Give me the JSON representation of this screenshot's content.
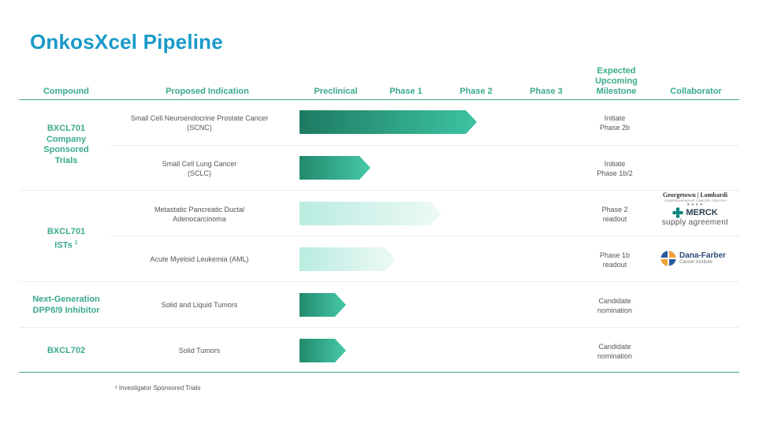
{
  "title": "OnkosXcel Pipeline",
  "headers": {
    "compound": "Compound",
    "indication": "Proposed Indication",
    "preclinical": "Preclinical",
    "phase1": "Phase 1",
    "phase2": "Phase 2",
    "phase3": "Phase 3",
    "milestone_l1": "Expected",
    "milestone_l2": "Upcoming",
    "milestone_l3": "Milestone",
    "collaborator": "Collaborator"
  },
  "groups": [
    {
      "lines": [
        "BXCL701",
        "Company",
        "Sponsored",
        "Trials"
      ]
    },
    {
      "lines": [
        "BXCL701",
        "ISTs"
      ],
      "sup": "1"
    },
    {
      "lines": [
        "Next-Generation",
        "DPP8/9 Inhibitor"
      ]
    },
    {
      "lines": [
        "BXCL702"
      ]
    }
  ],
  "rows": [
    {
      "indication": [
        "Small Cell Neuroendocrine Prostate Cancer",
        "(SCNC)"
      ],
      "milestone": [
        "Initiate",
        "Phase 2b"
      ],
      "progress_stage": 2.5,
      "style": "dark"
    },
    {
      "indication": [
        "Small Cell Lung Cancer",
        "(SCLC)"
      ],
      "milestone": [
        "Initiate",
        "Phase 1b/2"
      ],
      "progress_stage": 1.0,
      "style": "medium"
    },
    {
      "indication": [
        "Metastatic Pancreatic Ductal",
        "Adenocarcinoma"
      ],
      "milestone": [
        "Phase 2",
        "readout"
      ],
      "progress_stage": 2.0,
      "style": "light"
    },
    {
      "indication": [
        "Acute Myeloid Leukemia (AML)"
      ],
      "milestone": [
        "Phase 1b",
        "readout"
      ],
      "progress_stage": 1.35,
      "style": "light"
    },
    {
      "indication": [
        "Solid and Liquid Tumors"
      ],
      "milestone": [
        "Candidate",
        "nomination"
      ],
      "progress_stage": 0.65,
      "style": "medium"
    },
    {
      "indication": [
        "Solid Tumors"
      ],
      "milestone": [
        "Candidate",
        "nomination"
      ],
      "progress_stage": 0.65,
      "style": "medium"
    }
  ],
  "collaborators": {
    "georgetown": {
      "name": "Georgetown | Lombardi",
      "sub": "COMPREHENSIVE CANCER CENTER",
      "stars": "★★★★"
    },
    "merck": {
      "name": "MERCK",
      "note": "supply agreement"
    },
    "danafarber": {
      "name": "Dana-Farber",
      "sub": "Cancer Institute"
    }
  },
  "footnote": "¹ Investigator Sponsored Trials",
  "colors": {
    "accent": "#3aaa8e",
    "title": "#1a9ac9",
    "bar_dark": [
      "#1e7a62",
      "#3cc4a2"
    ],
    "bar_medium": [
      "#23896c",
      "#45c9a8"
    ],
    "bar_light": [
      "#b9ece0",
      "#eef9f6"
    ]
  }
}
